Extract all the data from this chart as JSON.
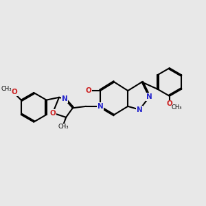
{
  "background_color": "#e8e8e8",
  "bond_color": "#000000",
  "n_color": "#2222cc",
  "o_color": "#cc2222",
  "bond_lw": 1.5,
  "font_size": 7.5,
  "fig_size": [
    3.0,
    3.0
  ],
  "dpi": 100,
  "xlim": [
    -3.1,
    2.9
  ],
  "ylim": [
    -0.95,
    1.45
  ]
}
